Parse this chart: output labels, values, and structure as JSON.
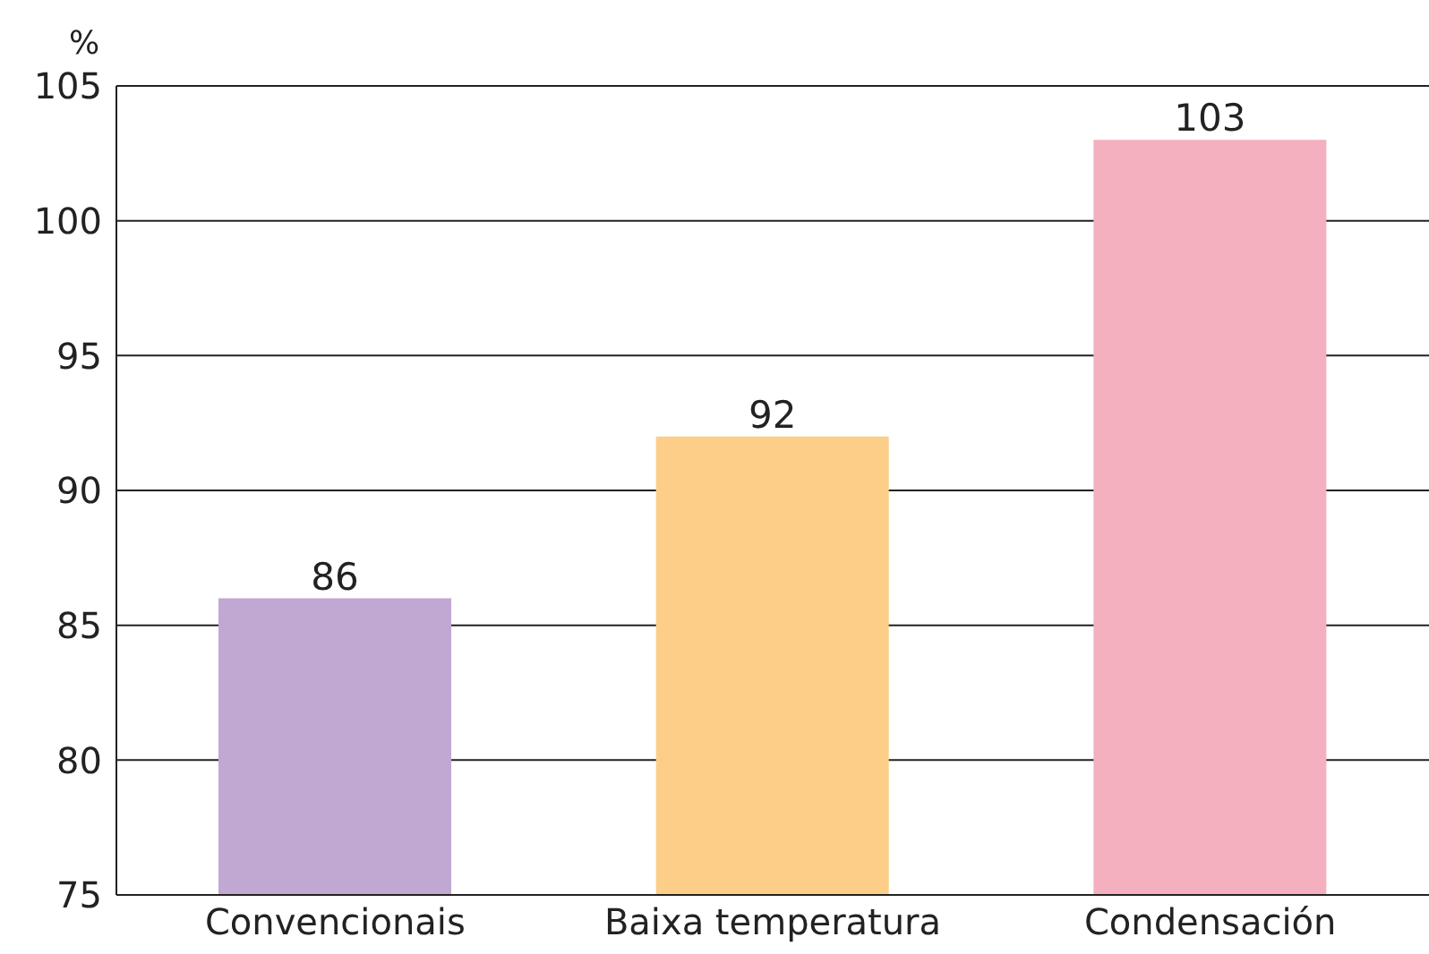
{
  "chart_data": {
    "type": "bar",
    "ylabel": "%",
    "categories": [
      "Convencionais",
      "Baixa temperatura",
      "Condensación"
    ],
    "values": [
      86,
      92,
      103
    ],
    "colors": [
      "#c0a8d2",
      "#fcce88",
      "#f4b0bf"
    ],
    "ylim": [
      75,
      105
    ],
    "yticks": [
      75,
      80,
      85,
      90,
      95,
      100,
      105
    ],
    "grid": "y",
    "data_labels": true
  }
}
